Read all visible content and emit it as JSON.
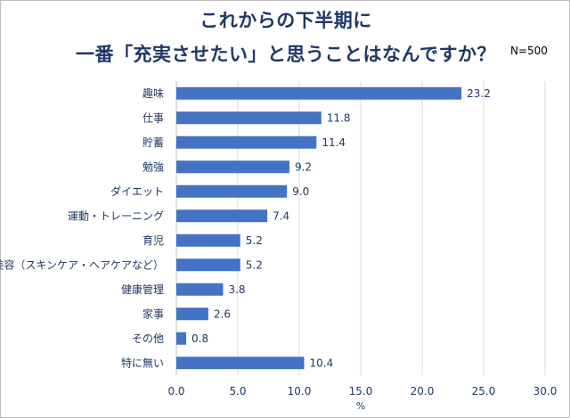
{
  "chart_data": {
    "type": "bar",
    "orientation": "horizontal",
    "title_lines": [
      "これからの下半期に",
      "一番「充実させたい」と思うことはなんですか？"
    ],
    "annotation": "N=500",
    "categories": [
      "趣味",
      "仕事",
      "貯蓄",
      "勉強",
      "ダイエット",
      "運動・トレーニング",
      "育児",
      "美容（スキンケア・ヘアケアなど）",
      "健康管理",
      "家事",
      "その他",
      "特に無い"
    ],
    "values": [
      23.2,
      11.8,
      11.4,
      9.2,
      9.0,
      7.4,
      5.2,
      5.2,
      3.8,
      2.6,
      0.8,
      10.4
    ],
    "value_labels": [
      "23.2",
      "11.8",
      "11.4",
      "9.2",
      "9.0",
      "7.4",
      "5.2",
      "5.2",
      "3.8",
      "2.6",
      "0.8",
      "10.4"
    ],
    "xlabel": "%",
    "xlim": [
      0,
      30
    ],
    "xticks": [
      0,
      5,
      10,
      15,
      20,
      25,
      30
    ],
    "xtick_labels": [
      "0.0",
      "5.0",
      "10.0",
      "15.0",
      "20.0",
      "25.0",
      "30.0"
    ],
    "grid": true,
    "bar_color": "#4472c4",
    "grid_color": "#d9d9d9",
    "text_color": "#1f3864"
  }
}
